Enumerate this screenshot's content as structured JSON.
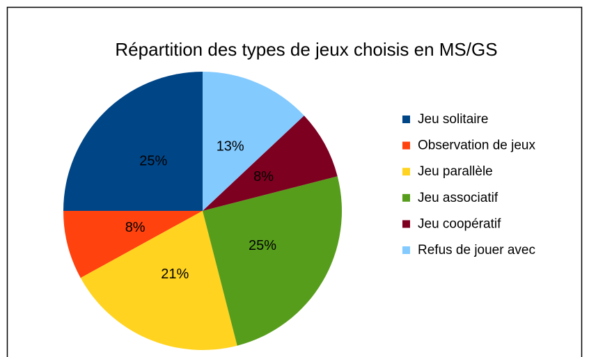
{
  "chart_data": {
    "type": "pie",
    "title": "Répartition des types de jeux choisis en MS/GS",
    "categories": [
      "Jeu solitaire",
      "Observation de jeux",
      "Jeu parallèle",
      "Jeu associatif",
      "Jeu coopératif",
      "Refus de jouer avec"
    ],
    "values": [
      25,
      8,
      21,
      25,
      8,
      13
    ],
    "value_labels": [
      "25%",
      "8%",
      "21%",
      "25%",
      "8%",
      "13%"
    ],
    "colors": [
      "#004586",
      "#ff420e",
      "#ffd320",
      "#579d1c",
      "#7e0021",
      "#83caff"
    ],
    "legend": "right"
  }
}
